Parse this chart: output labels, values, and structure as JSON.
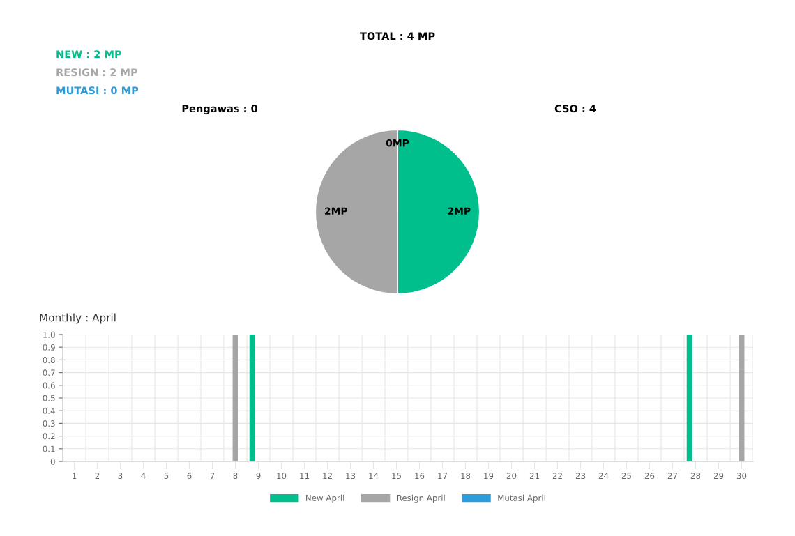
{
  "chart_data": [
    {
      "type": "other",
      "annotations": [
        "TOTAL : 4 MP",
        "NEW : 2 MP",
        "RESIGN : 2 MP",
        "MUTASI : 0 MP",
        "Pengawas : 0",
        "CSO : 4"
      ],
      "colors": [
        "#000000",
        "#00bf8c",
        "#a6a6a6",
        "#2d9cdb",
        "#000000",
        "#000000"
      ]
    },
    {
      "type": "pie",
      "categories": [
        null,
        null,
        null
      ],
      "values": [
        2,
        2,
        0
      ],
      "colors": [
        "#00bf8c",
        "#a6a6a6",
        "#2d9cdb"
      ],
      "value_labels": [
        "2MP",
        "2MP",
        "0MP"
      ]
    },
    {
      "type": "bar",
      "title": "Monthly : April",
      "categories": [
        "1",
        "2",
        "3",
        "4",
        "5",
        "6",
        "7",
        "8",
        "9",
        "10",
        "11",
        "12",
        "13",
        "14",
        "15",
        "16",
        "17",
        "18",
        "19",
        "20",
        "21",
        "22",
        "23",
        "24",
        "25",
        "26",
        "27",
        "28",
        "29",
        "30"
      ],
      "series": [
        {
          "name": "New April",
          "color": "#00bf8c",
          "values": [
            0,
            0,
            0,
            0,
            0,
            0,
            0,
            0,
            1,
            0,
            0,
            0,
            0,
            0,
            0,
            0,
            0,
            0,
            0,
            0,
            0,
            0,
            0,
            0,
            0,
            0,
            0,
            1,
            0,
            0
          ]
        },
        {
          "name": "Resign April",
          "color": "#a6a6a6",
          "values": [
            0,
            0,
            0,
            0,
            0,
            0,
            0,
            1,
            0,
            0,
            0,
            0,
            0,
            0,
            0,
            0,
            0,
            0,
            0,
            0,
            0,
            0,
            0,
            0,
            0,
            0,
            0,
            0,
            0,
            1
          ]
        },
        {
          "name": "Mutasi April",
          "color": "#2d9cdb",
          "values": [
            0,
            0,
            0,
            0,
            0,
            0,
            0,
            0,
            0,
            0,
            0,
            0,
            0,
            0,
            0,
            0,
            0,
            0,
            0,
            0,
            0,
            0,
            0,
            0,
            0,
            0,
            0,
            0,
            0,
            0
          ]
        }
      ],
      "ylim": [
        0,
        1
      ],
      "yticks": [
        0,
        0.1,
        0.2,
        0.3,
        0.4,
        0.5,
        0.6,
        0.7,
        0.8,
        0.9,
        {
          "value": 1,
          "label": "1.0"
        }
      ],
      "grid": true,
      "legend": "bottom"
    }
  ]
}
